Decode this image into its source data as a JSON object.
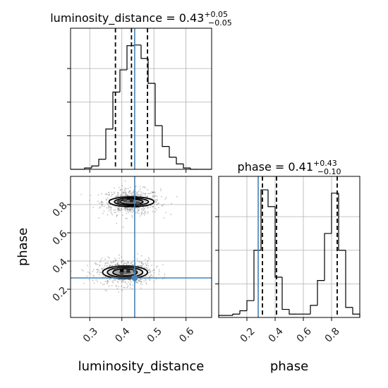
{
  "chart_data": [
    {
      "type": "histogram",
      "panel": "luminosity_distance-1d",
      "title_param": "luminosity_distance",
      "title_value": "0.43",
      "title_plus": "+0.05",
      "title_minus": "−0.05",
      "title_equals": " = ",
      "xlim": [
        0.24,
        0.68
      ],
      "xticks": [
        0.3,
        0.4,
        0.5,
        0.6
      ],
      "xtick_labels": [
        "0.3",
        "0.4",
        "0.5",
        "0.6"
      ],
      "bin_edges": [
        0.24,
        0.262,
        0.284,
        0.306,
        0.328,
        0.35,
        0.372,
        0.394,
        0.416,
        0.438,
        0.46,
        0.482,
        0.504,
        0.526,
        0.548,
        0.57,
        0.592,
        0.614,
        0.636,
        0.658,
        0.68
      ],
      "counts": [
        0,
        0,
        2,
        5,
        15,
        60,
        115,
        148,
        184,
        185,
        165,
        128,
        65,
        34,
        18,
        8,
        2,
        0,
        0,
        0
      ],
      "ylim": [
        0,
        210
      ],
      "quantiles": [
        0.38,
        0.43,
        0.48
      ],
      "truth": 0.44,
      "grid": true
    },
    {
      "type": "contour2d",
      "panel": "luminosity_distance-vs-phase",
      "xlabel": "luminosity_distance",
      "ylabel": "phase",
      "xlim": [
        0.24,
        0.68
      ],
      "ylim": [
        0.0,
        1.0
      ],
      "xticks": [
        0.3,
        0.4,
        0.5,
        0.6
      ],
      "xtick_labels": [
        "0.3",
        "0.4",
        "0.5",
        "0.6"
      ],
      "yticks": [
        0.2,
        0.4,
        0.6,
        0.8
      ],
      "ytick_labels": [
        "0.2",
        "0.4",
        "0.6",
        "0.8"
      ],
      "modes": [
        {
          "center": [
            0.43,
            0.82
          ],
          "contours": [
            [
              0.07,
              0.035
            ],
            [
              0.053,
              0.026
            ],
            [
              0.036,
              0.018
            ],
            [
              0.02,
              0.011
            ]
          ]
        },
        {
          "center": [
            0.41,
            0.32
          ],
          "contours": [
            [
              0.07,
              0.045
            ],
            [
              0.055,
              0.035
            ],
            [
              0.038,
              0.025
            ],
            [
              0.02,
              0.014
            ]
          ]
        }
      ],
      "dense_cells": [
        [
          0.4,
          0.33,
          3
        ],
        [
          0.42,
          0.33,
          2
        ],
        [
          0.38,
          0.35,
          1
        ],
        [
          0.44,
          0.33,
          1
        ],
        [
          0.4,
          0.31,
          1
        ],
        [
          0.43,
          0.83,
          2
        ],
        [
          0.41,
          0.83,
          1
        ],
        [
          0.45,
          0.81,
          1
        ],
        [
          0.39,
          0.82,
          1
        ]
      ],
      "truth": [
        0.44,
        0.28
      ],
      "grid": true
    },
    {
      "type": "histogram",
      "panel": "phase-1d",
      "title_param": "phase",
      "title_value": "0.41",
      "title_plus": "+0.43",
      "title_minus": "−0.10",
      "title_equals": " = ",
      "xlabel": "phase",
      "xlim": [
        0.0,
        1.0
      ],
      "xticks": [
        0.2,
        0.4,
        0.6,
        0.8
      ],
      "xtick_labels": [
        "0.2",
        "0.4",
        "0.6",
        "0.8"
      ],
      "bin_edges": [
        0.0,
        0.05,
        0.1,
        0.15,
        0.2,
        0.25,
        0.3,
        0.35,
        0.4,
        0.45,
        0.5,
        0.55,
        0.6,
        0.65,
        0.7,
        0.75,
        0.8,
        0.85,
        0.9,
        0.95,
        1.0
      ],
      "counts": [
        3,
        3,
        5,
        10,
        25,
        100,
        190,
        165,
        60,
        12,
        5,
        5,
        5,
        18,
        55,
        125,
        185,
        100,
        15,
        5
      ],
      "ylim": [
        0,
        210
      ],
      "quantiles": [
        0.31,
        0.41,
        0.84
      ],
      "truth": 0.28,
      "grid": true
    }
  ]
}
